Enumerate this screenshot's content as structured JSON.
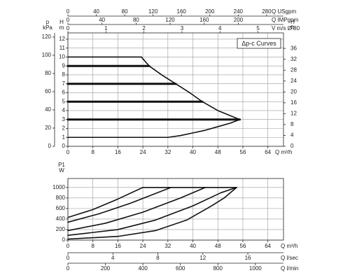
{
  "chart_data": [
    {
      "type": "line",
      "title": "Δp-c Curves",
      "grid": true,
      "x_bottom": [
        {
          "label": "Q m³/h",
          "lim": [
            0,
            69
          ],
          "ticks": [
            0,
            8,
            16,
            24,
            32,
            40,
            48,
            56,
            64
          ]
        }
      ],
      "x_top": [
        {
          "label": "Q USgpm",
          "lim": [
            0,
            303.8
          ],
          "ticks": [
            0,
            40,
            80,
            120,
            160,
            200,
            240,
            280
          ]
        },
        {
          "label": "Q IMPgpm",
          "lim": [
            0,
            253
          ],
          "ticks": [
            0,
            40,
            80,
            120,
            160,
            200
          ]
        },
        {
          "label": "V m/s Ø 80",
          "lim": [
            0,
            5.67
          ],
          "ticks": [
            0,
            1,
            2,
            3,
            4,
            5
          ]
        }
      ],
      "y_left": [
        {
          "label": [
            "H",
            "m"
          ],
          "lim": [
            0,
            12.7
          ],
          "ticks": [
            0,
            1,
            2,
            3,
            4,
            5,
            6,
            7,
            8,
            9,
            10,
            11,
            12
          ]
        },
        {
          "label": [
            "p",
            "kPa"
          ],
          "lim": [
            0,
            124.6
          ],
          "ticks": [
            0,
            20,
            40,
            60,
            80,
            100,
            120
          ]
        }
      ],
      "y_right": [
        {
          "label": [
            "H",
            "ft"
          ],
          "lim": [
            0,
            41.7
          ],
          "ticks": [
            0,
            4,
            8,
            12,
            16,
            20,
            24,
            28,
            32,
            36
          ]
        }
      ],
      "series": [
        {
          "color": "#111111",
          "width": 1.6,
          "x": [
            0,
            23.5
          ],
          "values": [
            10,
            10
          ]
        },
        {
          "color": "#111111",
          "width": 3,
          "x": [
            0,
            26
          ],
          "values": [
            9,
            9
          ]
        },
        {
          "color": "#111111",
          "width": 3,
          "x": [
            0,
            34.5
          ],
          "values": [
            7,
            7
          ]
        },
        {
          "color": "#111111",
          "width": 3,
          "x": [
            0,
            43
          ],
          "values": [
            5,
            5
          ]
        },
        {
          "color": "#111111",
          "width": 3,
          "x": [
            0,
            55
          ],
          "values": [
            3,
            3
          ]
        },
        {
          "color": "#111111",
          "width": 1.6,
          "x": [
            0,
            32
          ],
          "values": [
            1,
            1
          ]
        },
        {
          "color": "#111111",
          "width": 1.6,
          "x": [
            23.5,
            26,
            30,
            34.5,
            39,
            43,
            48,
            55
          ],
          "values": [
            10,
            9,
            8,
            7,
            6,
            5,
            4,
            3
          ]
        },
        {
          "color": "#111111",
          "width": 1.6,
          "x": [
            32,
            36,
            40,
            44,
            48,
            52,
            55
          ],
          "values": [
            1,
            1.2,
            1.5,
            1.8,
            2.2,
            2.6,
            3
          ]
        }
      ]
    },
    {
      "type": "line",
      "grid": true,
      "x_bottom": [
        {
          "label": "Q m³/h",
          "lim": [
            0,
            69
          ],
          "ticks": [
            0,
            8,
            16,
            24,
            32,
            40,
            48,
            56,
            64
          ]
        },
        {
          "label": "Q l/sec",
          "lim": [
            0,
            19.17
          ],
          "ticks": [
            0,
            4,
            8,
            12,
            16
          ]
        },
        {
          "label": "Q l/min",
          "lim": [
            0,
            1150
          ],
          "ticks": [
            0,
            200,
            400,
            600,
            800,
            1000
          ]
        }
      ],
      "y_left": [
        {
          "label": [
            "P1",
            "W"
          ],
          "lim": [
            0,
            1170
          ],
          "ticks": [
            0,
            200,
            400,
            600,
            800,
            1000
          ]
        }
      ],
      "series": [
        {
          "color": "#111111",
          "width": 1.6,
          "x": [
            0,
            8,
            16,
            24,
            54
          ],
          "values": [
            430,
            580,
            780,
            1000,
            1000
          ]
        },
        {
          "color": "#111111",
          "width": 1.6,
          "x": [
            0,
            10,
            20,
            33
          ],
          "values": [
            340,
            500,
            700,
            1000
          ]
        },
        {
          "color": "#111111",
          "width": 1.6,
          "x": [
            0,
            12,
            24,
            36,
            44
          ],
          "values": [
            180,
            320,
            530,
            800,
            1000
          ]
        },
        {
          "color": "#111111",
          "width": 1.6,
          "x": [
            0,
            16,
            28,
            40,
            49,
            54
          ],
          "values": [
            90,
            200,
            380,
            650,
            900,
            1000
          ]
        },
        {
          "color": "#111111",
          "width": 1.6,
          "x": [
            0,
            16,
            28,
            38,
            46,
            50,
            54
          ],
          "values": [
            20,
            70,
            180,
            380,
            650,
            800,
            1000
          ]
        }
      ]
    }
  ]
}
